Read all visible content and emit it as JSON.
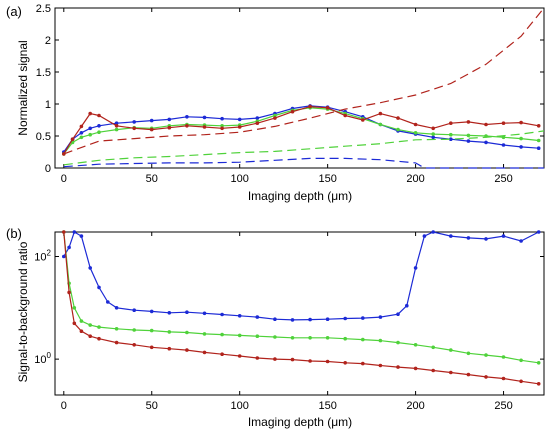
{
  "chart_data": [
    {
      "panel_label": "(a)",
      "type": "line",
      "xlabel": "Imaging depth (μm)",
      "ylabel": "Normalized signal",
      "xlim": [
        -5,
        273
      ],
      "ylim": [
        0,
        2.5
      ],
      "x_ticks": [
        0,
        50,
        100,
        150,
        200,
        250
      ],
      "y_ticks": [
        0,
        0.5,
        1,
        1.5,
        2,
        2.5
      ],
      "y_tick_labels": [
        "0",
        "0.5",
        "1",
        "1.5",
        "2",
        "2.5"
      ],
      "grid": false,
      "series": [
        {
          "color": "#1c2ad6",
          "style": "dots+solid",
          "x": [
            0,
            5,
            10,
            15,
            20,
            30,
            40,
            50,
            60,
            70,
            80,
            90,
            100,
            110,
            120,
            130,
            140,
            150,
            160,
            170,
            180,
            190,
            200,
            210,
            220,
            230,
            240,
            250,
            260,
            270
          ],
          "y": [
            0.25,
            0.45,
            0.55,
            0.62,
            0.66,
            0.7,
            0.72,
            0.74,
            0.76,
            0.8,
            0.79,
            0.77,
            0.76,
            0.78,
            0.85,
            0.93,
            0.97,
            0.95,
            0.88,
            0.8,
            0.68,
            0.58,
            0.53,
            0.48,
            0.45,
            0.42,
            0.4,
            0.36,
            0.33,
            0.31
          ]
        },
        {
          "color": "#4fd23a",
          "style": "dots+solid",
          "x": [
            0,
            5,
            10,
            15,
            20,
            30,
            40,
            50,
            60,
            70,
            80,
            90,
            100,
            110,
            120,
            130,
            140,
            150,
            160,
            170,
            180,
            190,
            200,
            210,
            220,
            230,
            240,
            250,
            260,
            270
          ],
          "y": [
            0.22,
            0.4,
            0.48,
            0.52,
            0.56,
            0.6,
            0.63,
            0.62,
            0.66,
            0.68,
            0.67,
            0.66,
            0.67,
            0.73,
            0.82,
            0.9,
            0.94,
            0.92,
            0.85,
            0.77,
            0.68,
            0.6,
            0.55,
            0.53,
            0.52,
            0.51,
            0.5,
            0.48,
            0.46,
            0.43
          ]
        },
        {
          "color": "#b1231c",
          "style": "dots+solid",
          "x": [
            0,
            5,
            10,
            15,
            20,
            30,
            40,
            50,
            60,
            70,
            80,
            90,
            100,
            110,
            120,
            130,
            140,
            150,
            160,
            170,
            180,
            190,
            200,
            210,
            220,
            230,
            240,
            250,
            260,
            270
          ],
          "y": [
            0.22,
            0.45,
            0.65,
            0.85,
            0.82,
            0.66,
            0.62,
            0.6,
            0.63,
            0.66,
            0.64,
            0.62,
            0.64,
            0.7,
            0.78,
            0.88,
            0.96,
            0.94,
            0.82,
            0.75,
            0.85,
            0.78,
            0.68,
            0.62,
            0.7,
            0.72,
            0.68,
            0.7,
            0.71,
            0.66
          ]
        },
        {
          "color": "#b1231c",
          "style": "dashed",
          "x": [
            0,
            20,
            40,
            60,
            80,
            100,
            120,
            140,
            160,
            180,
            200,
            220,
            240,
            260,
            273
          ],
          "y": [
            0.22,
            0.42,
            0.46,
            0.5,
            0.52,
            0.56,
            0.65,
            0.78,
            0.92,
            1.02,
            1.14,
            1.32,
            1.62,
            2.06,
            2.5
          ]
        },
        {
          "color": "#4fd23a",
          "style": "dashed",
          "x": [
            0,
            20,
            40,
            60,
            80,
            100,
            120,
            140,
            160,
            180,
            200,
            220,
            240,
            260,
            273
          ],
          "y": [
            0.05,
            0.12,
            0.16,
            0.18,
            0.21,
            0.24,
            0.26,
            0.3,
            0.34,
            0.38,
            0.44,
            0.45,
            0.48,
            0.53,
            0.58
          ]
        },
        {
          "color": "#1c2ad6",
          "style": "dashed",
          "x": [
            0,
            20,
            40,
            60,
            80,
            100,
            120,
            140,
            160,
            180,
            200,
            205,
            220,
            240,
            260,
            273
          ],
          "y": [
            0.02,
            0.06,
            0.07,
            0.08,
            0.08,
            0.09,
            0.12,
            0.15,
            0.15,
            0.13,
            0.08,
            0.0,
            0.0,
            0.0,
            0.0,
            0.0
          ]
        }
      ]
    },
    {
      "panel_label": "(b)",
      "type": "line",
      "xlabel": "Imaging depth (μm)",
      "ylabel": "Signal-to-background ratio",
      "xlim": [
        -5,
        273
      ],
      "ylim": [
        0.2,
        300
      ],
      "y_scale": "log",
      "x_ticks": [
        0,
        50,
        100,
        150,
        200,
        250
      ],
      "y_ticks": [
        1,
        100
      ],
      "y_tick_labels": [
        "10^0",
        "10^2"
      ],
      "grid": false,
      "series": [
        {
          "color": "#1c2ad6",
          "style": "dots+solid",
          "x": [
            0,
            3,
            6,
            10,
            15,
            20,
            25,
            30,
            40,
            50,
            60,
            70,
            80,
            90,
            100,
            110,
            120,
            130,
            140,
            150,
            160,
            170,
            180,
            190,
            195,
            200,
            205,
            210,
            220,
            230,
            240,
            250,
            260,
            270
          ],
          "y": [
            100,
            150,
            300,
            250,
            60,
            25,
            13,
            10,
            9,
            8.5,
            8,
            8.2,
            7.8,
            7.4,
            7.0,
            6.6,
            6.0,
            5.8,
            5.9,
            6.0,
            6.2,
            6.3,
            6.6,
            7.5,
            11,
            60,
            250,
            300,
            250,
            230,
            220,
            250,
            200,
            300
          ]
        },
        {
          "color": "#4fd23a",
          "style": "dots+solid",
          "x": [
            0,
            3,
            6,
            10,
            15,
            20,
            30,
            40,
            50,
            60,
            70,
            80,
            90,
            100,
            110,
            120,
            130,
            140,
            150,
            160,
            170,
            180,
            190,
            200,
            210,
            220,
            230,
            240,
            250,
            260,
            270
          ],
          "y": [
            300,
            30,
            10,
            5.5,
            4.6,
            4.2,
            3.9,
            3.7,
            3.6,
            3.4,
            3.3,
            3.1,
            3.0,
            2.9,
            2.8,
            2.7,
            2.6,
            2.6,
            2.6,
            2.5,
            2.4,
            2.3,
            2.1,
            1.9,
            1.7,
            1.5,
            1.3,
            1.2,
            1.1,
            0.95,
            0.85
          ]
        },
        {
          "color": "#b1231c",
          "style": "dots+solid",
          "x": [
            0,
            3,
            6,
            10,
            15,
            20,
            30,
            40,
            50,
            60,
            70,
            80,
            90,
            100,
            110,
            120,
            130,
            140,
            150,
            160,
            170,
            180,
            190,
            200,
            210,
            220,
            230,
            240,
            250,
            260,
            270
          ],
          "y": [
            300,
            20,
            5,
            3.5,
            2.8,
            2.5,
            2.1,
            1.9,
            1.7,
            1.6,
            1.5,
            1.35,
            1.25,
            1.15,
            1.05,
            1.0,
            0.98,
            0.92,
            0.9,
            0.85,
            0.82,
            0.75,
            0.7,
            0.66,
            0.6,
            0.55,
            0.5,
            0.45,
            0.42,
            0.37,
            0.33
          ]
        }
      ]
    }
  ]
}
